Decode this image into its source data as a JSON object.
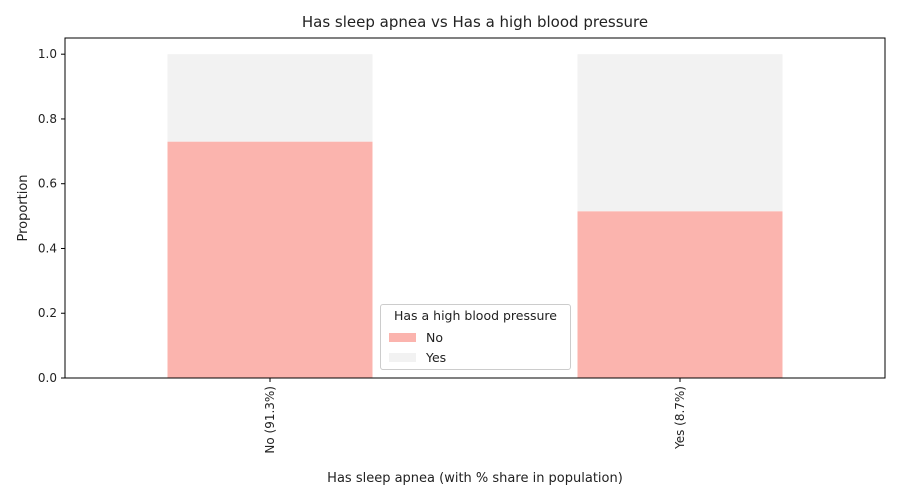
{
  "chart_data": {
    "type": "bar",
    "stacked": true,
    "title": "Has sleep apnea vs Has a high blood pressure",
    "xlabel": "Has sleep apnea (with % share in population)",
    "ylabel": "Proportion",
    "categories": [
      "No (91.3%)",
      "Yes (8.7%)"
    ],
    "series": [
      {
        "name": "No",
        "color": "#fbb4ae",
        "values": [
          0.73,
          0.515
        ]
      },
      {
        "name": "Yes",
        "color": "#f2f2f2",
        "values": [
          0.27,
          0.485
        ]
      }
    ],
    "ylim": [
      0,
      1.05
    ],
    "yticks": [
      "0.0",
      "0.2",
      "0.4",
      "0.6",
      "0.8",
      "1.0"
    ],
    "grid": false,
    "legend": {
      "title": "Has a high blood pressure",
      "placement": "lower-center"
    }
  }
}
